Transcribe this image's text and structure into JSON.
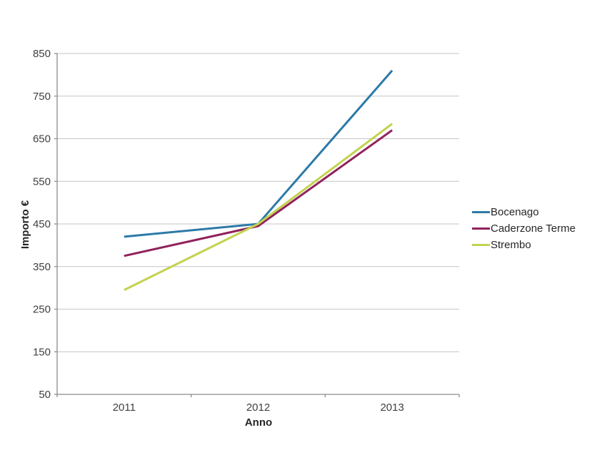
{
  "chart_data": {
    "type": "line",
    "title": "",
    "xlabel": "Anno",
    "ylabel": "Importo €",
    "categories": [
      "2011",
      "2012",
      "2013"
    ],
    "series": [
      {
        "name": "Bocenago",
        "color": "#2D7AA8",
        "values": [
          420,
          450,
          810
        ]
      },
      {
        "name": "Caderzone Terme",
        "color": "#91215C",
        "values": [
          375,
          445,
          670
        ]
      },
      {
        "name": "Strembo",
        "color": "#C3D24F",
        "values": [
          295,
          450,
          685
        ]
      }
    ],
    "ylim": [
      50,
      850
    ],
    "yticks": [
      50,
      150,
      250,
      350,
      450,
      550,
      650,
      750,
      850
    ],
    "grid": "horizontal",
    "legend_position": "right",
    "colors": {
      "gridline": "#C6C6C6",
      "axis": "#8C8C8C",
      "tick_label": "#404040",
      "background": "#FFFFFF"
    }
  }
}
